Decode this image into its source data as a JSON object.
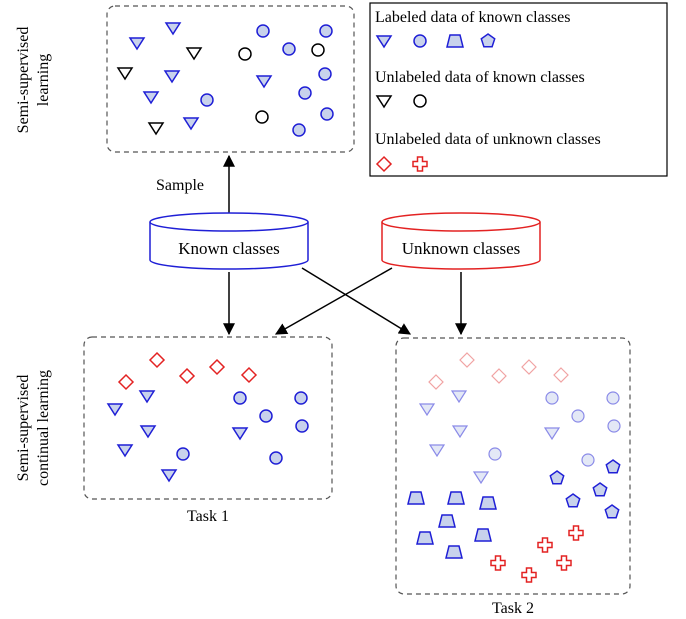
{
  "side_labels": {
    "top_line1": "Semi-supervised",
    "top_line2": "learning",
    "bottom_line1": "Semi-supervised",
    "bottom_line2": "continual learning"
  },
  "legend": {
    "labeled_known": "Labeled data of known classes",
    "unlabeled_known": "Unlabeled data of known classes",
    "unlabeled_unknown": "Unlabeled data of unknown classes"
  },
  "sources": {
    "known": "Known classes",
    "unknown": "Unknown classes"
  },
  "arrow_label": "Sample",
  "tasks": {
    "task1": "Task 1",
    "task2": "Task 2"
  },
  "colors": {
    "blue_stroke": "#1f1fd6",
    "blue_fill": "#c8d2ec",
    "red_stroke": "#e32222",
    "faded_blue_stroke": "#8a8ae8",
    "faded_blue_fill": "#e3e8f6",
    "faded_red_stroke": "#f1a3a3",
    "box_dash": "#555555"
  }
}
